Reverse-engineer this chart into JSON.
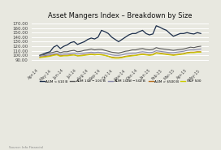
{
  "title": "Asset Mangers Index – Breakdown by Size",
  "x_labels": [
    "Apr-14",
    "May-14",
    "Jun-14",
    "Jul-14",
    "Aug-14",
    "Sep-14",
    "Oct-14",
    "Nov-14",
    "Dec-14",
    "Jan-15",
    "Feb-15",
    "Mar-15",
    "Apr-15",
    "May-15"
  ],
  "ylim": [
    80,
    175
  ],
  "yticks": [
    90,
    100,
    110,
    120,
    130,
    140,
    150,
    160,
    170
  ],
  "series": {
    "AUM < $10 B": {
      "color": "#1c2e4a",
      "linewidth": 0.9,
      "values": [
        100,
        103,
        106,
        108,
        118,
        122,
        115,
        120,
        123,
        128,
        130,
        124,
        127,
        130,
        135,
        138,
        136,
        140,
        155,
        152,
        148,
        140,
        135,
        130,
        135,
        140,
        145,
        148,
        148,
        152,
        155,
        148,
        145,
        147,
        165,
        162,
        158,
        155,
        148,
        142,
        145,
        148,
        148,
        150,
        148,
        147,
        150,
        148
      ]
    },
    "AUM $10 B - $100 B": {
      "color": "#5a5a5a",
      "linewidth": 0.8,
      "values": [
        100,
        101,
        103,
        105,
        107,
        109,
        106,
        108,
        108,
        110,
        111,
        108,
        109,
        111,
        112,
        114,
        112,
        113,
        113,
        111,
        109,
        107,
        106,
        105,
        107,
        109,
        110,
        112,
        112,
        114,
        115,
        113,
        112,
        113,
        117,
        115,
        114,
        113,
        112,
        111,
        112,
        113,
        114,
        116,
        118,
        117,
        119,
        120
      ]
    },
    "AUM $100 B - $500 B": {
      "color": "#8888aa",
      "linewidth": 0.8,
      "values": [
        98,
        99,
        100,
        101,
        103,
        104,
        102,
        103,
        103,
        104,
        105,
        103,
        104,
        105,
        106,
        107,
        106,
        107,
        106,
        105,
        103,
        101,
        100,
        100,
        101,
        103,
        104,
        105,
        105,
        107,
        108,
        107,
        106,
        107,
        110,
        109,
        108,
        107,
        106,
        106,
        107,
        108,
        109,
        111,
        112,
        112,
        113,
        114
      ]
    },
    "AUM > $500 B": {
      "color": "#b87020",
      "linewidth": 0.8,
      "values": [
        96,
        97,
        98,
        99,
        101,
        102,
        99,
        100,
        100,
        101,
        101,
        99,
        100,
        101,
        102,
        103,
        102,
        102,
        102,
        100,
        98,
        96,
        95,
        95,
        96,
        98,
        99,
        100,
        100,
        102,
        103,
        102,
        101,
        102,
        106,
        105,
        104,
        103,
        102,
        101,
        102,
        103,
        104,
        106,
        107,
        107,
        108,
        108
      ]
    },
    "S&P 500": {
      "color": "#cccc00",
      "linewidth": 0.9,
      "values": [
        95,
        96,
        97,
        98,
        100,
        101,
        98,
        99,
        99,
        100,
        101,
        99,
        99,
        100,
        101,
        102,
        101,
        102,
        101,
        100,
        98,
        95,
        94,
        94,
        95,
        97,
        98,
        99,
        100,
        101,
        102,
        101,
        100,
        101,
        105,
        104,
        103,
        102,
        101,
        100,
        101,
        102,
        103,
        105,
        106,
        106,
        107,
        107
      ]
    }
  },
  "legend_labels": [
    "AUM < $10 B",
    "AUM $10 B - $100 B",
    "AUM $100 B - $500 B",
    "AUM > $500 B",
    "S&P 500"
  ],
  "legend_colors": [
    "#1c2e4a",
    "#5a5a5a",
    "#8888aa",
    "#b87020",
    "#cccc00"
  ],
  "source_text": "Source: Info Financial",
  "background_color": "#e8e8e0",
  "plot_bg_color": "#e8e8e0",
  "grid_color": "#ffffff"
}
